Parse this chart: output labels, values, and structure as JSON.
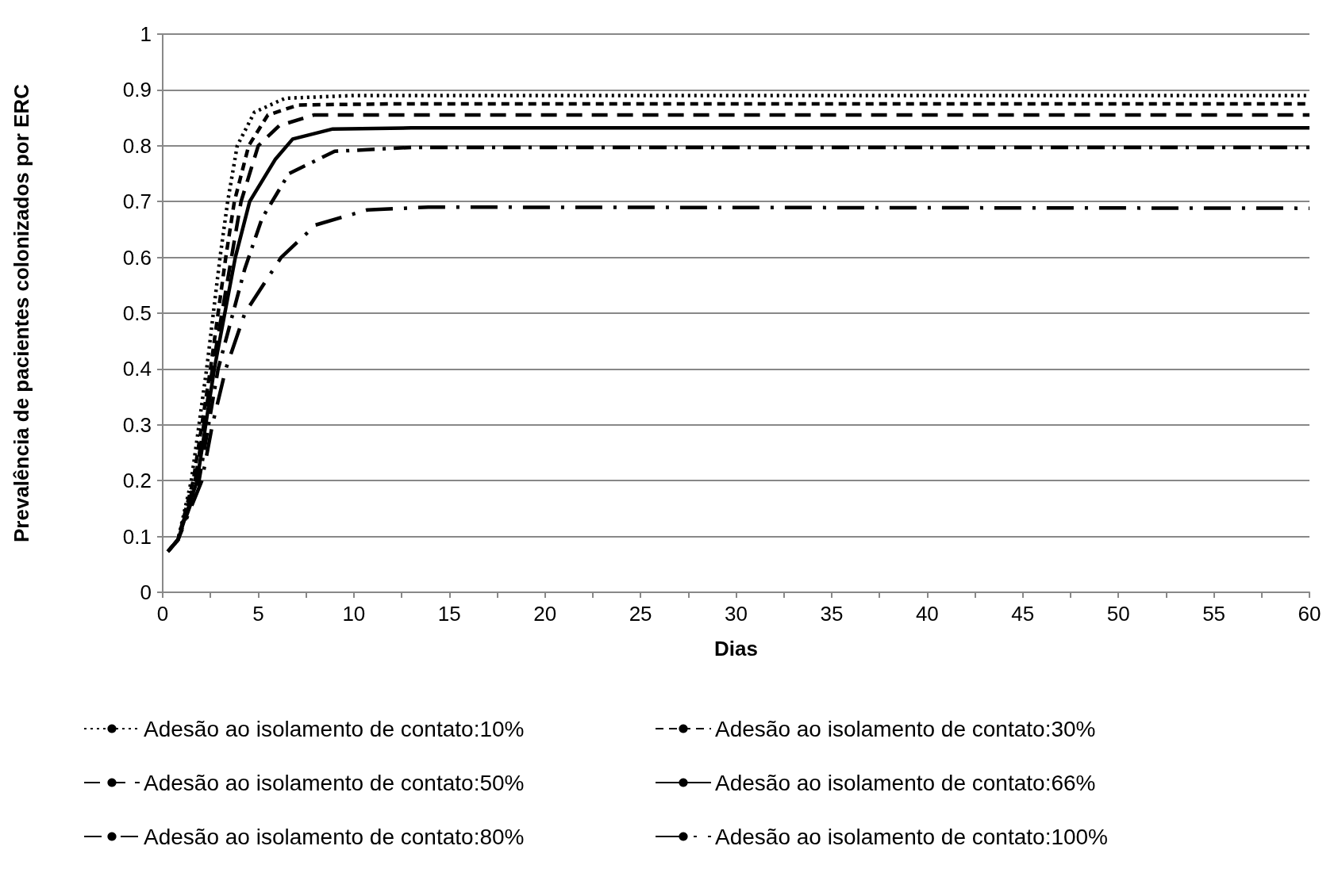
{
  "chart_data": {
    "type": "line",
    "xlabel": "Dias",
    "ylabel": "Prevalência de pacientes colonizados por ERC",
    "xlim": [
      0,
      60
    ],
    "ylim": [
      0,
      1
    ],
    "xticks": [
      0,
      {
        "value": 2.5,
        "label": null
      },
      5,
      {
        "value": 7.5,
        "label": null
      },
      10,
      {
        "value": 12.5,
        "label": null
      },
      15,
      {
        "value": 17.5,
        "label": null
      },
      20,
      {
        "value": 22.5,
        "label": null
      },
      25,
      {
        "value": 27.5,
        "label": null
      },
      30,
      {
        "value": 32.5,
        "label": null
      },
      35,
      {
        "value": 37.5,
        "label": null
      },
      40,
      {
        "value": 42.5,
        "label": null
      },
      45,
      {
        "value": 47.5,
        "label": null
      },
      50,
      {
        "value": 52.5,
        "label": null
      },
      55,
      {
        "value": 57.5,
        "label": null
      },
      60
    ],
    "yticks": [
      0,
      0.1,
      0.2,
      0.3,
      0.4,
      0.5,
      0.6,
      0.7,
      0.8,
      0.9,
      1
    ],
    "grid": "y",
    "legend": "bottom",
    "marker": "none",
    "series": [
      {
        "name": "Adesão ao isolamento de contato:10%",
        "color": "#000000",
        "line_style": "dotted",
        "x": [
          0.27,
          0.8,
          1.5,
          2.3,
          3.0,
          3.4,
          3.9,
          4.8,
          6.4,
          10,
          60
        ],
        "values": [
          0.073,
          0.094,
          0.2,
          0.4,
          0.6,
          0.7,
          0.8,
          0.86,
          0.885,
          0.89,
          0.89
        ]
      },
      {
        "name": "Adesão ao isolamento de contato:30%",
        "color": "#000000",
        "line_style": "dashed",
        "x": [
          0.27,
          0.8,
          1.6,
          2.5,
          3.3,
          3.75,
          4.5,
          5.5,
          7.1,
          12,
          60
        ],
        "values": [
          0.073,
          0.094,
          0.2,
          0.4,
          0.6,
          0.7,
          0.8,
          0.855,
          0.873,
          0.875,
          0.875
        ]
      },
      {
        "name": "Adesão ao isolamento de contato:50%",
        "color": "#000000",
        "line_style": "dashed",
        "x": [
          0.27,
          0.8,
          1.7,
          2.6,
          3.6,
          4.1,
          5.0,
          6.1,
          7.9,
          12,
          60
        ],
        "values": [
          0.073,
          0.094,
          0.2,
          0.4,
          0.6,
          0.7,
          0.8,
          0.836,
          0.855,
          0.855,
          0.855
        ]
      },
      {
        "name": "Adesão ao isolamento de contato:66%",
        "color": "#000000",
        "line_style": "solid",
        "x": [
          0.27,
          0.8,
          1.8,
          2.7,
          3.8,
          4.55,
          5.9,
          6.8,
          8.9,
          13,
          60
        ],
        "values": [
          0.073,
          0.094,
          0.2,
          0.4,
          0.6,
          0.7,
          0.776,
          0.812,
          0.83,
          0.832,
          0.832
        ]
      },
      {
        "name": "Adesão ao isolamento de contato:80%",
        "color": "#000000",
        "line_style": "dashed",
        "x": [
          0.27,
          0.8,
          1.9,
          2.9,
          4.3,
          5.2,
          6.6,
          9.0,
          13,
          60
        ],
        "values": [
          0.073,
          0.094,
          0.2,
          0.4,
          0.58,
          0.67,
          0.75,
          0.79,
          0.797,
          0.797
        ]
      },
      {
        "name": "Adesão ao isolamento de contato:100%",
        "color": "#000000",
        "line_style": "dashed",
        "x": [
          0.27,
          0.8,
          2.05,
          2.6,
          3.3,
          4.3,
          6.2,
          8.0,
          10.7,
          13.9,
          60
        ],
        "values": [
          0.073,
          0.094,
          0.2,
          0.3,
          0.4,
          0.5,
          0.6,
          0.658,
          0.685,
          0.69,
          0.688
        ]
      }
    ]
  }
}
